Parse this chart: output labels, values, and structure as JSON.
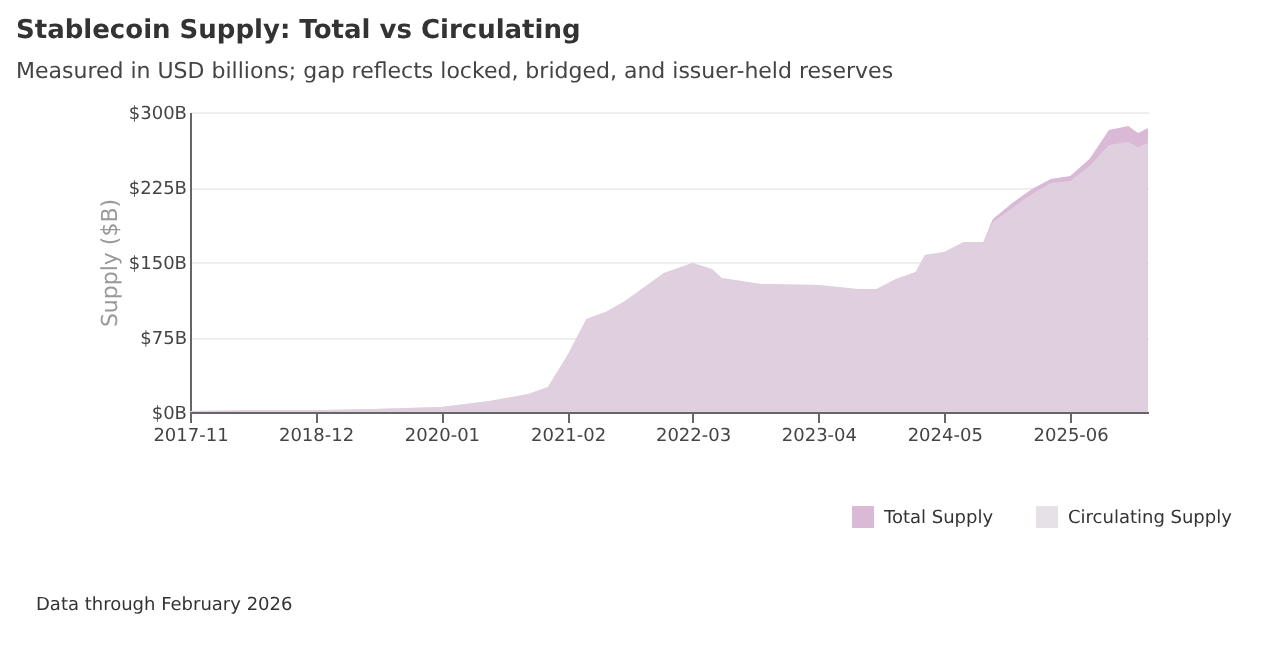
{
  "chart_data": {
    "type": "area",
    "title": "Stablecoin Supply: Total vs Circulating",
    "subtitle": "Measured in USD billions; gap reflects locked, bridged, and issuer-held reserves",
    "ylabel": "Supply ($B)",
    "x": [
      "2017-11",
      "2018-06",
      "2019-01",
      "2019-06",
      "2020-01",
      "2020-06",
      "2020-10",
      "2020-12",
      "2021-02",
      "2021-04",
      "2021-06",
      "2021-08",
      "2021-10",
      "2021-12",
      "2022-03",
      "2022-05",
      "2022-06",
      "2022-10",
      "2023-04",
      "2023-08",
      "2023-10",
      "2023-12",
      "2024-02",
      "2024-03",
      "2024-05",
      "2024-07",
      "2024-09",
      "2024-10",
      "2024-12",
      "2025-02",
      "2025-04",
      "2025-06",
      "2025-08",
      "2025-10",
      "2025-12",
      "2026-01",
      "2026-02"
    ],
    "series": [
      {
        "name": "Total Supply",
        "color": "#d9b9d6",
        "values": [
          1,
          2,
          2,
          3,
          5,
          11,
          18,
          25,
          57,
          93,
          100,
          111,
          125,
          139,
          149,
          143,
          134,
          128,
          127,
          123,
          123,
          133,
          140,
          157,
          160,
          170,
          170,
          193,
          209,
          223,
          233,
          236,
          253,
          282,
          286,
          279,
          284
        ]
      },
      {
        "name": "Circulating Supply",
        "color": "#e6e1e6",
        "values": [
          1,
          2,
          2,
          3,
          5,
          11,
          18,
          25,
          57,
          93,
          100,
          111,
          125,
          139,
          149,
          143,
          134,
          128,
          127,
          123,
          123,
          133,
          140,
          157,
          160,
          170,
          170,
          190,
          204,
          218,
          229,
          231,
          246,
          267,
          270,
          265,
          269
        ]
      }
    ],
    "xlim": [
      "2017-11",
      "2026-02"
    ],
    "xticks": [
      "2017-11",
      "2018-12",
      "2020-01",
      "2021-02",
      "2022-03",
      "2023-04",
      "2024-05",
      "2025-06"
    ],
    "ylim": [
      0,
      300
    ],
    "yticks": [
      {
        "value": 0,
        "label": "$0B"
      },
      {
        "value": 75,
        "label": "$75B"
      },
      {
        "value": 150,
        "label": "$150B"
      },
      {
        "value": 225,
        "label": "$225B"
      },
      {
        "value": 300,
        "label": "$300B"
      }
    ],
    "grid": "y",
    "legend": "bottom right",
    "annotations": [
      "Data through February 2026"
    ]
  }
}
